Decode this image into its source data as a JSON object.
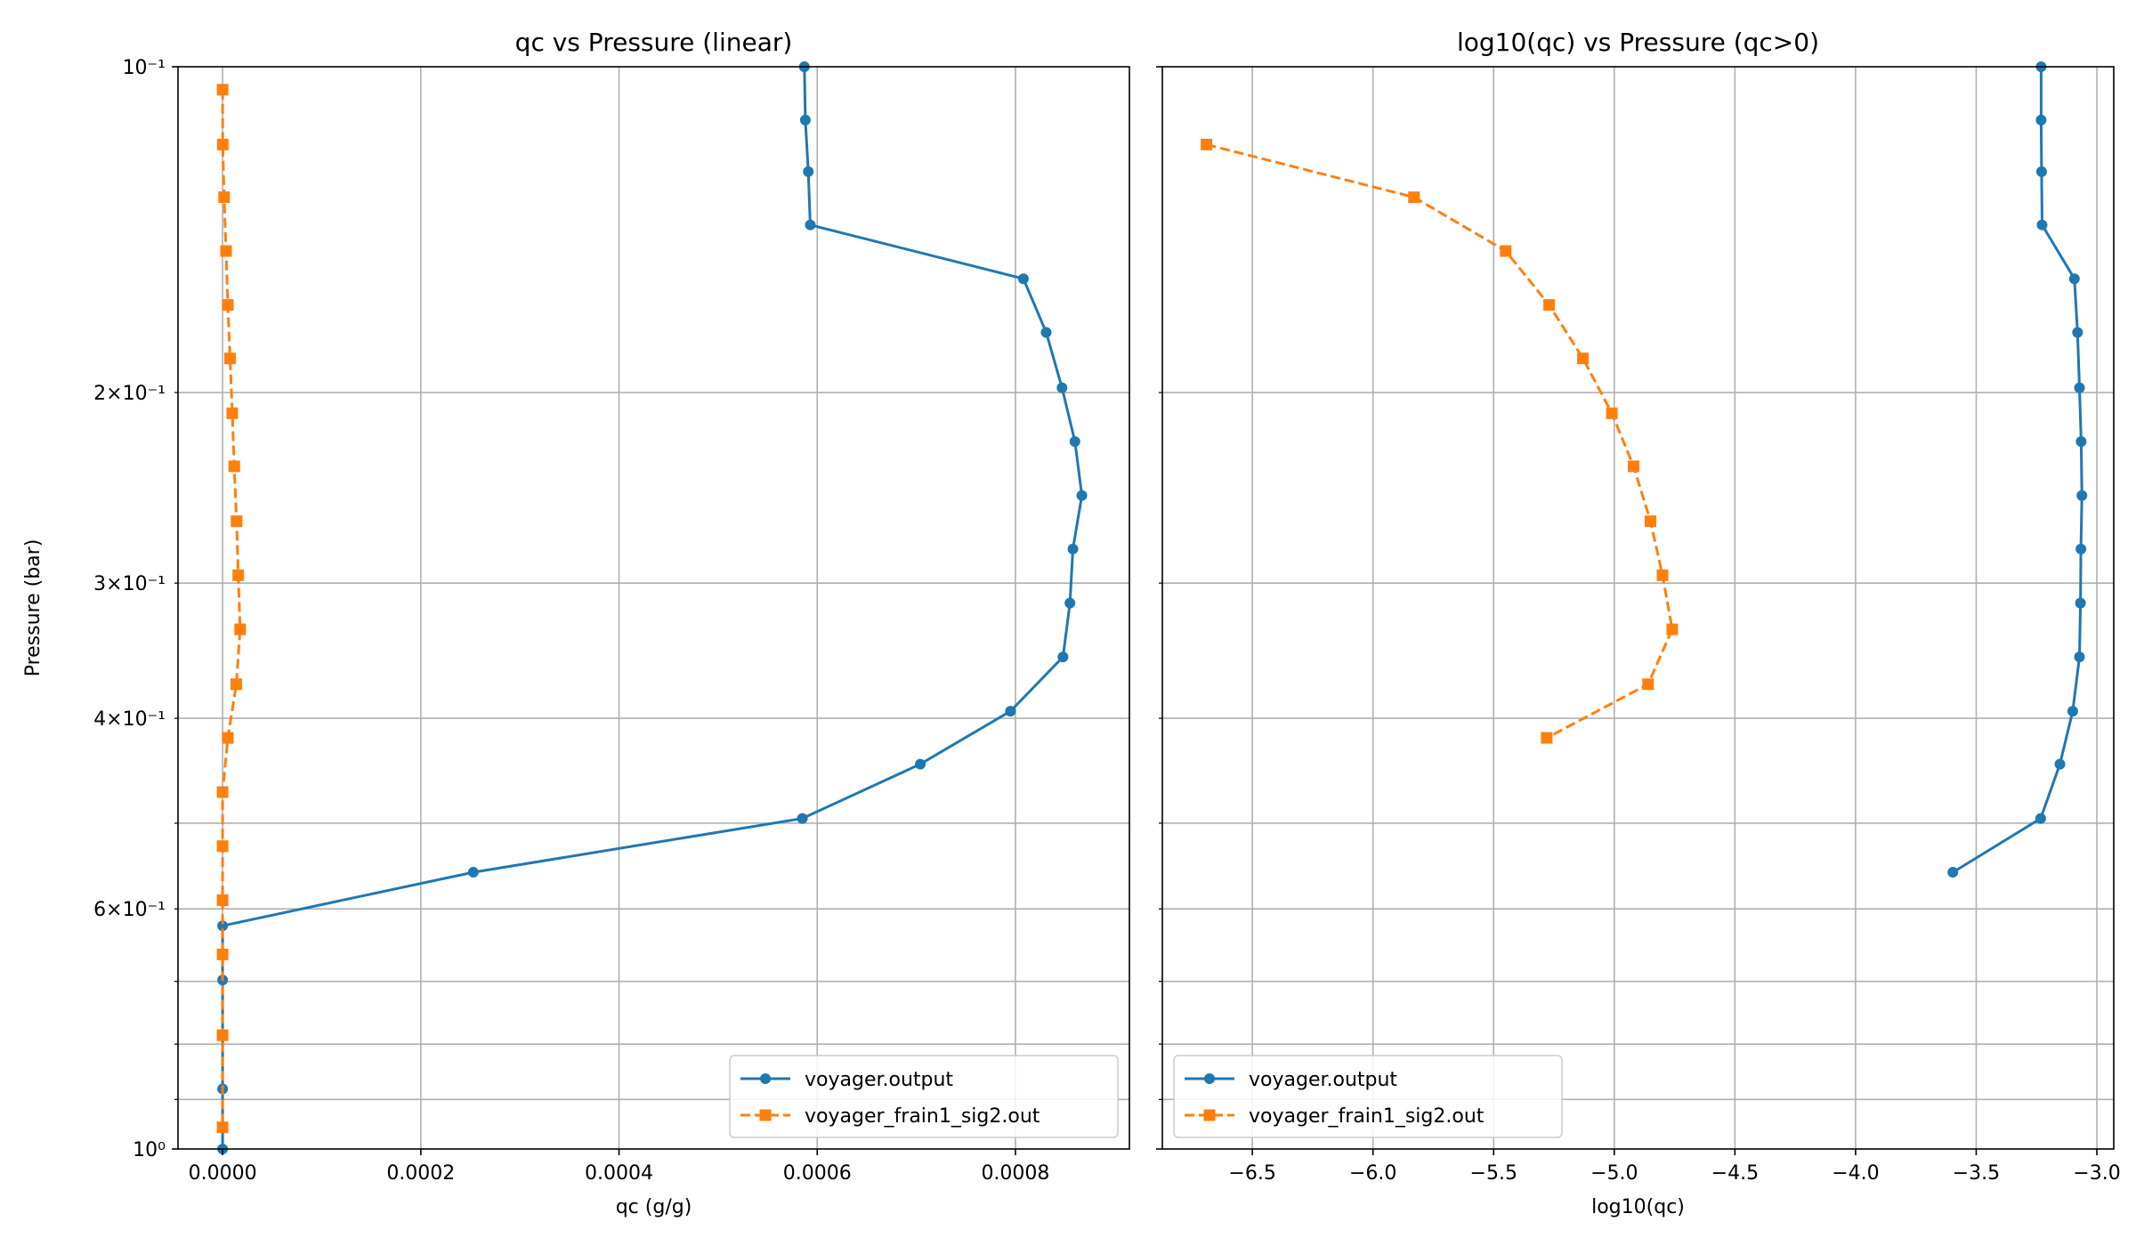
{
  "figure": {
    "shared_ylabel": "Pressure (bar)"
  },
  "chart_data": [
    {
      "type": "line",
      "title": "qc vs Pressure (linear)",
      "xlabel": "qc (g/g)",
      "ylabel": "Pressure (bar)",
      "xlim": [
        -4.5e-05,
        0.000915
      ],
      "ylim": [
        1.0,
        0.1
      ],
      "yscale": "log",
      "y_inverted": true,
      "grid": true,
      "legend_position": "lower right",
      "x_ticks": [
        0.0,
        0.0002,
        0.0004,
        0.0006,
        0.0008
      ],
      "x_tick_labels": [
        "0.0000",
        "0.0002",
        "0.0004",
        "0.0006",
        "0.0008"
      ],
      "y_major_ticks": [
        0.1,
        1.0
      ],
      "y_major_labels": [
        "10⁻¹",
        "10⁰"
      ],
      "y_minor_ticks": [
        0.2,
        0.3,
        0.4,
        0.5,
        0.6,
        0.7,
        0.8,
        0.9
      ],
      "y_minor_labels": [
        "2×10⁻¹",
        "3×10⁻¹",
        "4×10⁻¹",
        "",
        "6×10⁻¹",
        "",
        "",
        ""
      ],
      "series": [
        {
          "name": "voyager.output",
          "color": "#1f77b4",
          "linestyle": "solid",
          "marker": "circle",
          "x": [
            0.000587,
            0.000588,
            0.000591,
            0.000593,
            0.000808,
            0.000831,
            0.000847,
            0.00086,
            0.000867,
            0.000858,
            0.000855,
            0.000848,
            0.000795,
            0.000704,
            0.000585,
            0.000253,
            0.0,
            0.0,
            0.0,
            0.0
          ],
          "y": [
            0.1,
            0.112,
            0.125,
            0.14,
            0.157,
            0.176,
            0.198,
            0.222,
            0.249,
            0.279,
            0.313,
            0.351,
            0.394,
            0.441,
            0.495,
            0.555,
            0.622,
            0.698,
            0.88,
            1.0
          ]
        },
        {
          "name": "voyager_frain1_sig2.out",
          "color": "#ff7f0e",
          "linestyle": "dashed",
          "marker": "square",
          "x": [
            0.0,
            2e-07,
            1.5e-06,
            3.5e-06,
            5.3e-06,
            7.5e-06,
            9.8e-06,
            1.18e-05,
            1.41e-05,
            1.58e-05,
            1.77e-05,
            1.38e-05,
            5.3e-06,
            0.0,
            0.0,
            0.0,
            0.0,
            0.0,
            0.0
          ],
          "y": [
            0.105,
            0.118,
            0.132,
            0.148,
            0.166,
            0.186,
            0.209,
            0.234,
            0.263,
            0.295,
            0.331,
            0.372,
            0.417,
            0.468,
            0.525,
            0.589,
            0.661,
            0.785,
            0.955
          ]
        }
      ]
    },
    {
      "type": "line",
      "title": "log10(qc) vs Pressure (qc>0)",
      "xlabel": "log10(qc)",
      "ylabel": "",
      "xlim": [
        -6.873,
        -2.93
      ],
      "ylim": [
        1.0,
        0.1
      ],
      "yscale": "log",
      "y_inverted": true,
      "grid": true,
      "legend_position": "lower left",
      "x_ticks": [
        -6.5,
        -6.0,
        -5.5,
        -5.0,
        -4.5,
        -4.0,
        -3.5,
        -3.0
      ],
      "x_tick_labels": [
        "−6.5",
        "−6.0",
        "−5.5",
        "−5.0",
        "−4.5",
        "−4.0",
        "−3.5",
        "−3.0"
      ],
      "series": [
        {
          "name": "voyager.output",
          "color": "#1f77b4",
          "linestyle": "solid",
          "marker": "circle",
          "x": [
            -3.231,
            -3.231,
            -3.229,
            -3.227,
            -3.093,
            -3.08,
            -3.072,
            -3.065,
            -3.062,
            -3.066,
            -3.068,
            -3.072,
            -3.1,
            -3.153,
            -3.233,
            -3.597
          ],
          "y": [
            0.1,
            0.112,
            0.125,
            0.14,
            0.157,
            0.176,
            0.198,
            0.222,
            0.249,
            0.279,
            0.313,
            0.351,
            0.394,
            0.441,
            0.495,
            0.555
          ]
        },
        {
          "name": "voyager_frain1_sig2.out",
          "color": "#ff7f0e",
          "linestyle": "dashed",
          "marker": "square",
          "x": [
            -6.69,
            -5.83,
            -5.45,
            -5.27,
            -5.13,
            -5.01,
            -4.92,
            -4.85,
            -4.8,
            -4.76,
            -4.86,
            -5.28
          ],
          "y": [
            0.118,
            0.132,
            0.148,
            0.166,
            0.186,
            0.209,
            0.234,
            0.263,
            0.295,
            0.331,
            0.372,
            0.417
          ]
        }
      ]
    }
  ]
}
